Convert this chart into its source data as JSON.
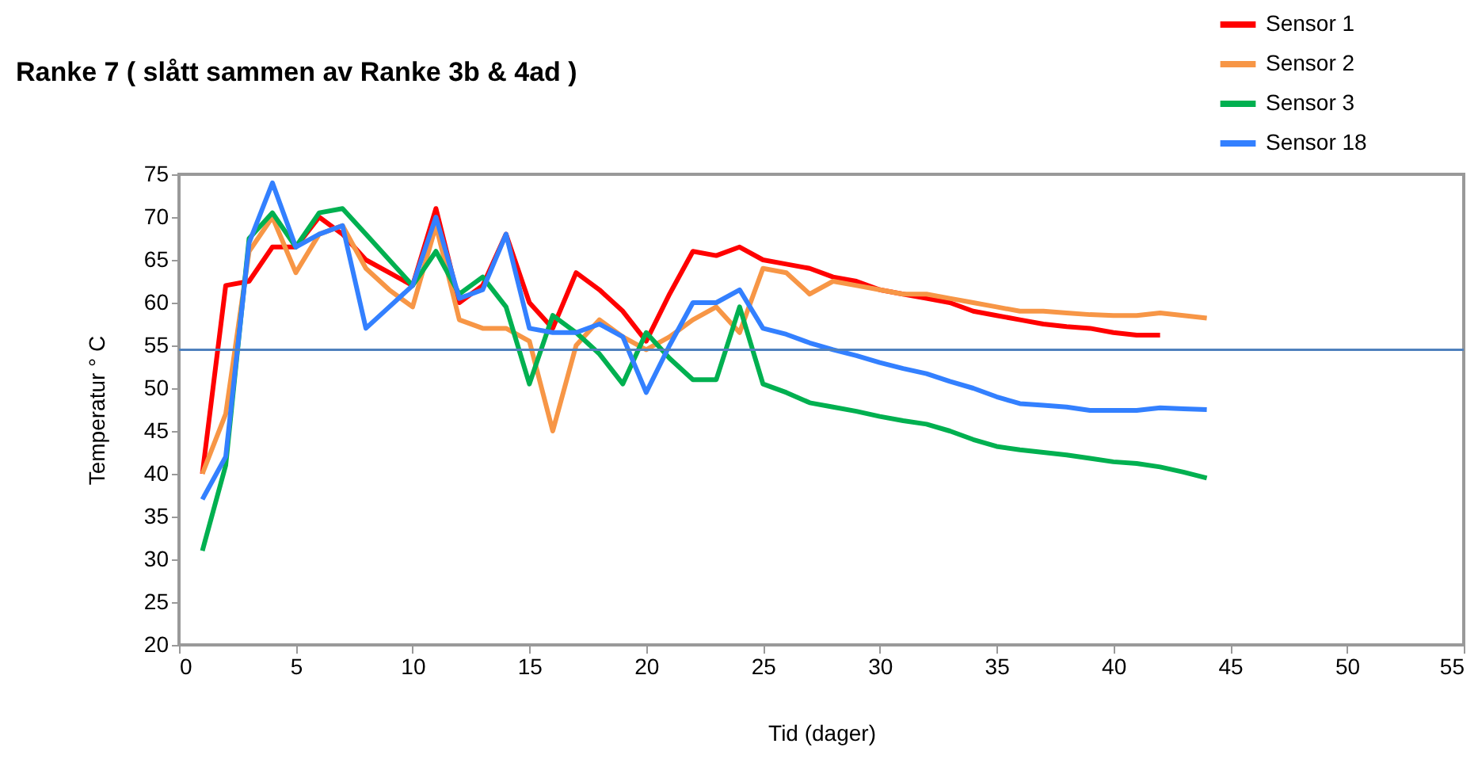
{
  "chart_data": {
    "type": "line",
    "title": "Ranke 7 ( slått sammen av Ranke  3b & 4ad )",
    "xlabel": "Tid (dager)",
    "ylabel": "Temperatur   ° C",
    "x": [
      1,
      2,
      3,
      4,
      5,
      6,
      7,
      8,
      9,
      10,
      11,
      12,
      13,
      14,
      15,
      16,
      17,
      18,
      19,
      20,
      21,
      22,
      23,
      24,
      25,
      26,
      27,
      28,
      29,
      30,
      31,
      32,
      33,
      34,
      35,
      36,
      37,
      38,
      39,
      40,
      41,
      42,
      43,
      44
    ],
    "series": [
      {
        "name": "Sensor 1",
        "color": "#ff0000",
        "values": [
          40,
          62,
          62.5,
          66.5,
          66.5,
          70,
          68,
          65,
          63.5,
          62,
          71,
          60,
          62,
          68,
          60,
          57,
          63.5,
          61.5,
          59,
          55.5,
          61,
          66,
          65.5,
          66.5,
          65,
          64.5,
          64,
          63,
          62.5,
          61.5,
          61,
          60.5,
          60,
          59,
          58.5,
          58,
          57.5,
          57.2,
          57,
          56.5,
          56.2,
          56.2,
          null,
          null
        ]
      },
      {
        "name": "Sensor 2",
        "color": "#f79646",
        "values": [
          40,
          47,
          66,
          70,
          63.5,
          68,
          69,
          64,
          61.5,
          59.5,
          69,
          58,
          57,
          57,
          55.5,
          45,
          55,
          58,
          56,
          54.5,
          56,
          58,
          59.5,
          56.5,
          64,
          63.5,
          61,
          62.5,
          62,
          61.5,
          61,
          61,
          60.5,
          60,
          59.5,
          59,
          59,
          58.8,
          58.6,
          58.5,
          58.5,
          58.8,
          58.5,
          58.2
        ]
      },
      {
        "name": "Sensor 3",
        "color": "#00b050",
        "values": [
          31,
          41,
          67.5,
          70.5,
          66.5,
          70.5,
          71,
          68,
          65,
          62,
          66,
          61,
          63,
          59.5,
          50.5,
          58.5,
          56.5,
          54,
          50.5,
          56.5,
          53.5,
          51,
          51,
          59.5,
          50.5,
          49.5,
          48.3,
          47.8,
          47.3,
          46.7,
          46.2,
          45.8,
          45,
          44,
          43.2,
          42.8,
          42.5,
          42.2,
          41.8,
          41.4,
          41.2,
          40.8,
          40.2,
          39.5
        ]
      },
      {
        "name": "Sensor 18",
        "color": "#3380ff",
        "values": [
          37,
          42,
          67,
          74,
          66.5,
          68,
          69,
          57,
          59.5,
          62,
          70,
          60.5,
          61.5,
          68,
          57,
          56.5,
          56.5,
          57.5,
          56,
          49.5,
          55,
          60,
          60,
          61.5,
          57,
          56.3,
          55.3,
          54.5,
          53.8,
          53,
          52.3,
          51.7,
          50.8,
          50,
          49,
          48.2,
          48,
          47.8,
          47.4,
          47.4,
          47.4,
          47.7,
          47.6,
          47.5
        ]
      }
    ],
    "xlim": [
      0,
      55
    ],
    "xticks": [
      0,
      5,
      10,
      15,
      20,
      25,
      30,
      35,
      40,
      45,
      50,
      55
    ],
    "ylim": [
      20,
      75
    ],
    "yticks": [
      20,
      25,
      30,
      35,
      40,
      45,
      50,
      55,
      60,
      65,
      70,
      75
    ],
    "ref_lines": [
      {
        "axis": "y",
        "value": 54.5,
        "color": "#4f81bd"
      }
    ],
    "grid": false,
    "legend": "top right",
    "marker": "none",
    "line_style": "solid"
  }
}
